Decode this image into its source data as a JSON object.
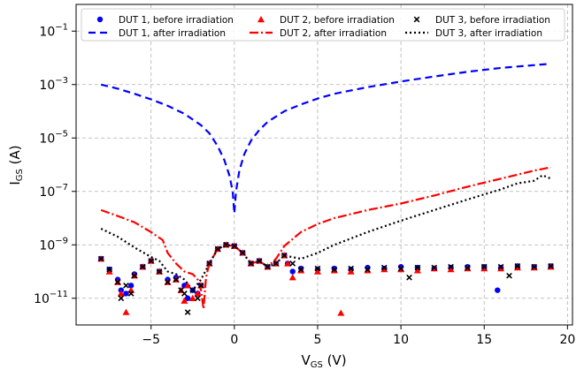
{
  "chart_data": {
    "type": "line",
    "title": "",
    "xlabel": "V_GS (V)",
    "ylabel": "I_GS (A)",
    "xlabel_parts": {
      "main": "V",
      "sub": "GS",
      "rest": " (V)"
    },
    "ylabel_parts": {
      "main": "I",
      "sub": "GS",
      "rest": " (A)"
    },
    "xlim": [
      -9.5,
      20.3
    ],
    "ylim": [
      1e-12,
      1
    ],
    "yscale": "log",
    "grid": true,
    "legend_position": "top",
    "xticks": [
      {
        "value": -5,
        "label": "−5"
      },
      {
        "value": 0,
        "label": "0"
      },
      {
        "value": 5,
        "label": "5"
      },
      {
        "value": 10,
        "label": "10"
      },
      {
        "value": 15,
        "label": "15"
      },
      {
        "value": 20,
        "label": "20"
      }
    ],
    "yticks": [
      {
        "value": 0.1,
        "base": "10",
        "exp": "−1"
      },
      {
        "value": 0.001,
        "base": "10",
        "exp": "−3"
      },
      {
        "value": 1e-05,
        "base": "10",
        "exp": "−5"
      },
      {
        "value": 1e-07,
        "base": "10",
        "exp": "−7"
      },
      {
        "value": 1e-09,
        "base": "10",
        "exp": "−9"
      },
      {
        "value": 1e-11,
        "base": "10",
        "exp": "−11"
      }
    ],
    "series": [
      {
        "name": "DUT 1, before irradiation",
        "kind": "scatter",
        "marker": "circle",
        "color": "#0000ff",
        "x": [
          -8,
          -7.5,
          -7,
          -6.8,
          -6.5,
          -6.2,
          -6,
          -5.5,
          -5,
          -4.5,
          -4,
          -3.5,
          -3,
          -2.8,
          -2.5,
          -2.2,
          -2,
          -1.5,
          -1,
          -0.5,
          0,
          0.5,
          1,
          1.5,
          2,
          2.5,
          3,
          3.2,
          3.5,
          4,
          5,
          6,
          7,
          8,
          9,
          10,
          11,
          12,
          13,
          14,
          15,
          15.8,
          16,
          17,
          18,
          19
        ],
        "y": [
          3e-10,
          1.2e-10,
          5e-11,
          2e-11,
          1.5e-11,
          3e-11,
          8e-11,
          1.5e-10,
          2.5e-10,
          1e-10,
          5e-11,
          6e-11,
          3e-11,
          1e-11,
          2e-11,
          1.5e-11,
          3e-11,
          2e-10,
          7e-10,
          1e-09,
          9e-10,
          5e-10,
          2e-10,
          2.5e-10,
          1.5e-10,
          2e-10,
          4e-10,
          2e-10,
          1e-10,
          1.3e-10,
          1.2e-10,
          1.3e-10,
          1.2e-10,
          1.4e-10,
          1.3e-10,
          1.5e-10,
          1.4e-10,
          1.3e-10,
          1.4e-10,
          1.5e-10,
          1.5e-10,
          2e-11,
          1.4e-10,
          1.6e-10,
          1.5e-10,
          1.6e-10
        ]
      },
      {
        "name": "DUT 1, after irradiation",
        "kind": "line",
        "dash": "8 5",
        "color": "#0000ff",
        "x": [
          -8,
          -7,
          -6,
          -5,
          -4,
          -3,
          -2,
          -1.5,
          -1,
          -0.6,
          -0.3,
          -0.1,
          0,
          0.1,
          0.3,
          0.6,
          1,
          1.5,
          2,
          3,
          4,
          5,
          6,
          8,
          10,
          12,
          14,
          16,
          19
        ],
        "y": [
          0.001,
          0.0007,
          0.00045,
          0.00028,
          0.00016,
          8e-05,
          3e-05,
          1.5e-05,
          5e-06,
          1.5e-06,
          4e-07,
          1e-07,
          1.5e-08,
          1e-07,
          6e-07,
          2.5e-06,
          8e-06,
          2e-05,
          4e-05,
          0.0001,
          0.00018,
          0.0003,
          0.00045,
          0.0008,
          0.0013,
          0.002,
          0.003,
          0.0042,
          0.006
        ]
      },
      {
        "name": "DUT 2, before irradiation",
        "kind": "scatter",
        "marker": "triangle",
        "color": "#ff0000",
        "x": [
          -8,
          -7.5,
          -7,
          -6.8,
          -6.5,
          -6.2,
          -6,
          -5.5,
          -5,
          -4.5,
          -4,
          -3.5,
          -3.2,
          -3,
          -2.8,
          -2.5,
          -2.2,
          -2,
          -1.5,
          -1,
          -0.5,
          0,
          0.5,
          1,
          1.5,
          2,
          2.5,
          3,
          3.2,
          3.5,
          4,
          5,
          6,
          6.4,
          7,
          8,
          9,
          10,
          11,
          12,
          13,
          14,
          15,
          16,
          17,
          18,
          19
        ],
        "y": [
          3e-10,
          1e-10,
          4e-11,
          1.5e-11,
          3e-12,
          2e-11,
          7e-11,
          1.5e-10,
          2.5e-10,
          1e-10,
          4e-11,
          5e-11,
          2e-11,
          8e-12,
          3e-11,
          1e-11,
          1.5e-11,
          3e-11,
          2e-10,
          7e-10,
          1e-09,
          9e-10,
          5e-10,
          2e-10,
          2.5e-10,
          1.5e-10,
          2e-10,
          4e-10,
          2e-10,
          6e-11,
          1.1e-10,
          1e-10,
          1.1e-10,
          2.8e-12,
          1e-10,
          1.1e-10,
          1.2e-10,
          1.2e-10,
          1.1e-10,
          1.3e-10,
          1.2e-10,
          1.3e-10,
          1.3e-10,
          1.3e-10,
          1.4e-10,
          1.4e-10,
          1.5e-10
        ]
      },
      {
        "name": "DUT 2, after irradiation",
        "kind": "line",
        "dash": "10 3 2 3",
        "color": "#ff0000",
        "x": [
          -8,
          -7,
          -6,
          -5,
          -4.3,
          -4,
          -3.5,
          -3,
          -2.5,
          -2.2,
          -2,
          -1.85,
          -1.8,
          -1.7,
          -1.5,
          -1,
          -0.5,
          0,
          0.5,
          1,
          1.5,
          2,
          2.5,
          3,
          4,
          5,
          6,
          8,
          10,
          12,
          14,
          16,
          18,
          19
        ],
        "y": [
          2e-08,
          1.2e-08,
          7e-09,
          3e-09,
          1.5e-09,
          5e-10,
          2e-10,
          1e-10,
          8e-11,
          5e-11,
          2e-11,
          4e-12,
          1e-11,
          6e-11,
          2e-10,
          7e-10,
          1e-09,
          9e-10,
          5e-10,
          2e-10,
          2.5e-10,
          1.5e-10,
          3e-10,
          9e-10,
          3e-09,
          6e-09,
          1e-08,
          2e-08,
          3.5e-08,
          7e-08,
          1.5e-07,
          3e-07,
          6e-07,
          8e-07
        ]
      },
      {
        "name": "DUT 3, before irradiation",
        "kind": "scatter",
        "marker": "x",
        "color": "#000000",
        "x": [
          -8,
          -7.5,
          -7,
          -6.8,
          -6.5,
          -6.2,
          -6,
          -5.5,
          -5,
          -4.5,
          -4,
          -3.5,
          -3.2,
          -3,
          -2.8,
          -2.5,
          -2.2,
          -2,
          -1.5,
          -1,
          -0.5,
          0,
          0.5,
          1,
          1.5,
          2,
          2.5,
          3,
          3.5,
          4,
          5,
          6,
          7,
          8,
          9,
          10,
          10.5,
          11,
          12,
          13,
          14,
          15,
          16,
          16.5,
          17,
          18,
          19
        ],
        "y": [
          3e-10,
          1.2e-10,
          4e-11,
          1e-11,
          3e-11,
          1.5e-11,
          7e-11,
          1.5e-10,
          2.5e-10,
          1e-10,
          4e-11,
          5e-11,
          2e-11,
          1.5e-11,
          3e-12,
          2e-11,
          1e-11,
          3e-11,
          2e-10,
          7e-10,
          1e-09,
          9e-10,
          5e-10,
          2e-10,
          2.5e-10,
          1.5e-10,
          2e-10,
          4e-10,
          2e-10,
          1.2e-10,
          1.3e-10,
          1.2e-10,
          1.3e-10,
          1.2e-10,
          1.4e-10,
          1.3e-10,
          6e-11,
          1.4e-10,
          1.4e-10,
          1.5e-10,
          1.4e-10,
          1.5e-10,
          1.5e-10,
          7e-11,
          1.6e-10,
          1.5e-10,
          1.6e-10
        ]
      },
      {
        "name": "DUT 3, after irradiation",
        "kind": "line",
        "dash": "2 3",
        "color": "#000000",
        "x": [
          -8,
          -7,
          -6,
          -5,
          -4.5,
          -4,
          -3.5,
          -3,
          -2.5,
          -2,
          -1.5,
          -1,
          -0.5,
          0,
          0.5,
          1,
          1.5,
          2,
          2.5,
          3,
          4,
          5,
          6,
          8,
          10,
          12,
          14,
          16,
          17,
          18,
          18.5,
          19
        ],
        "y": [
          4e-09,
          2e-09,
          8e-10,
          3.5e-10,
          2.5e-10,
          1e-10,
          8e-11,
          5e-11,
          2e-11,
          5e-11,
          2e-10,
          7e-10,
          1e-09,
          9e-10,
          5e-10,
          2e-10,
          2.5e-10,
          1.5e-10,
          2e-10,
          4e-10,
          3e-10,
          5e-10,
          1e-09,
          3e-09,
          8e-09,
          2e-08,
          5e-08,
          1.2e-07,
          2e-07,
          2.5e-07,
          4e-07,
          3e-07
        ]
      }
    ]
  }
}
